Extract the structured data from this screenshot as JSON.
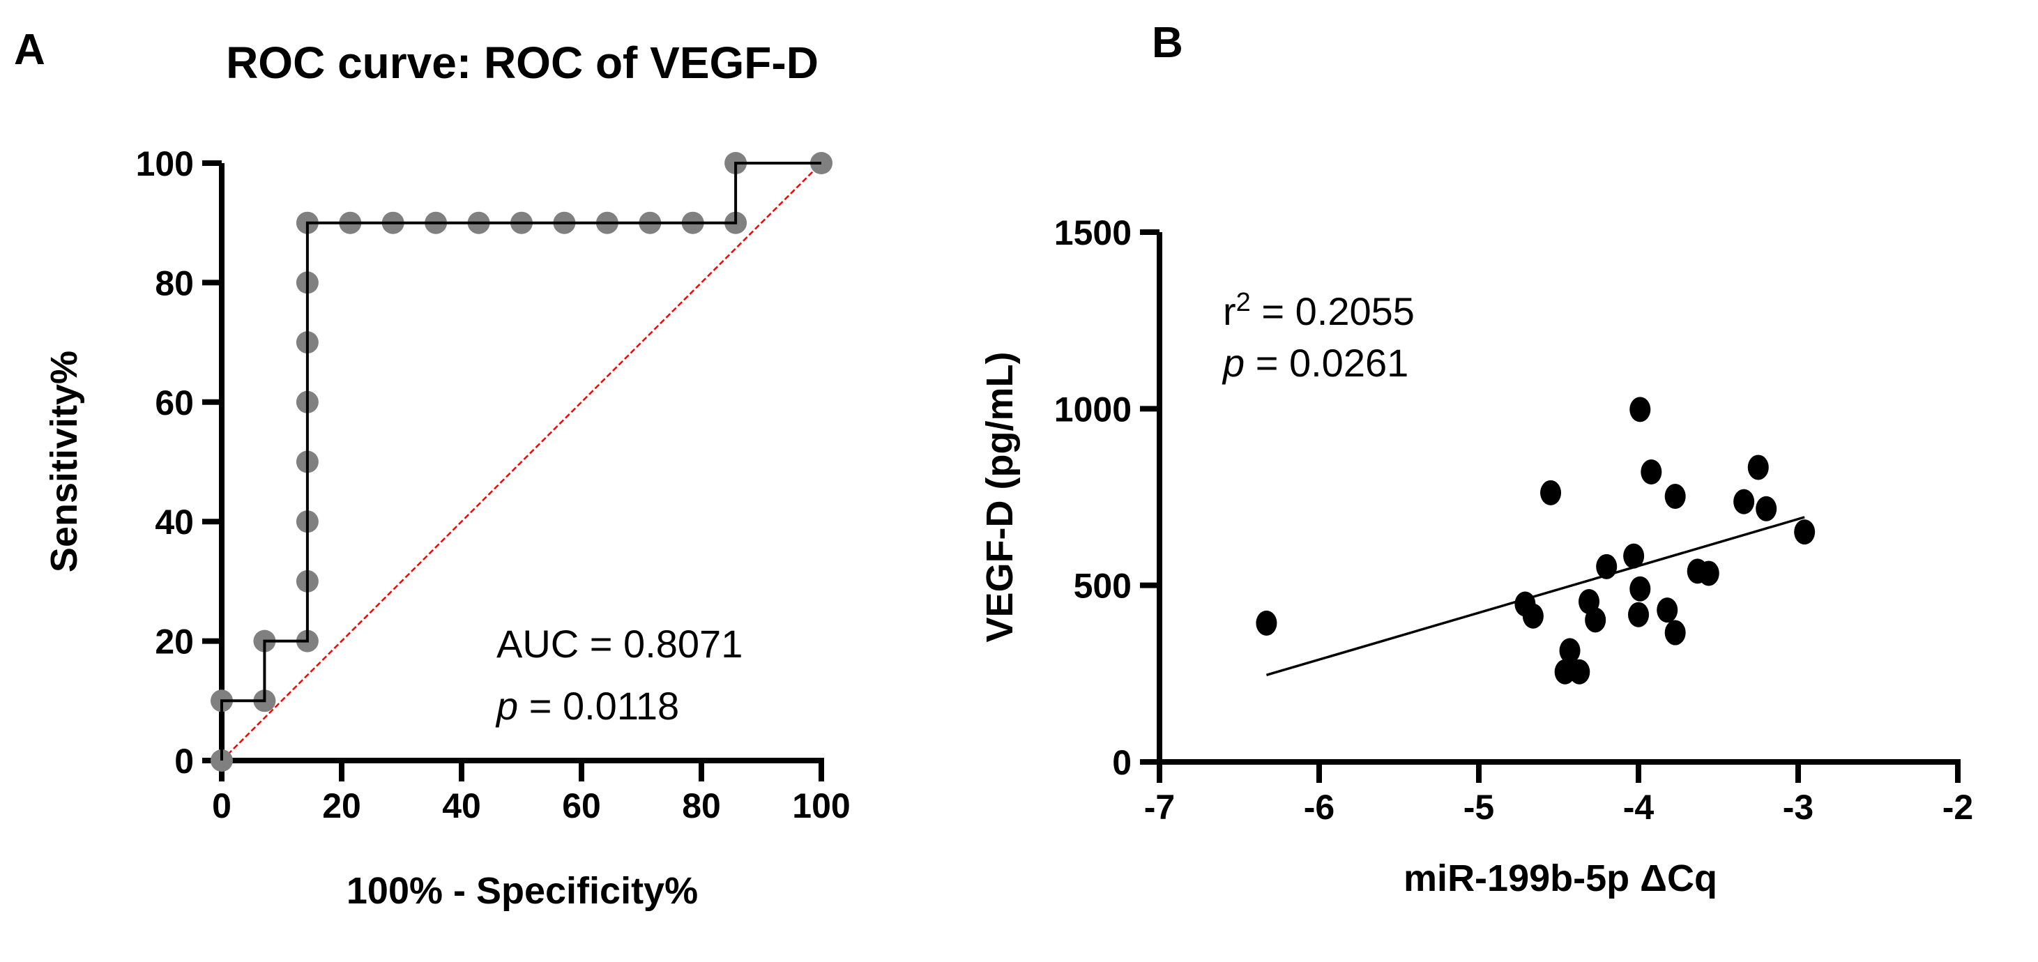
{
  "chart_data": [
    {
      "panel": "A",
      "type": "line",
      "title": "ROC curve: ROC of VEGF-D",
      "xlabel": "100% - Specificity%",
      "ylabel": "Sensitivity%",
      "xlim": [
        0,
        100
      ],
      "ylim": [
        0,
        100
      ],
      "xticks": [
        0,
        20,
        40,
        60,
        80,
        100
      ],
      "yticks": [
        0,
        20,
        40,
        60,
        80,
        100
      ],
      "grid": false,
      "series": [
        {
          "name": "ROC of VEGF-D",
          "color": "#808080",
          "points": [
            [
              0,
              0
            ],
            [
              0,
              10
            ],
            [
              7.14,
              10
            ],
            [
              7.14,
              20
            ],
            [
              14.29,
              20
            ],
            [
              14.29,
              30
            ],
            [
              14.29,
              40
            ],
            [
              14.29,
              50
            ],
            [
              14.29,
              60
            ],
            [
              14.29,
              70
            ],
            [
              14.29,
              80
            ],
            [
              14.29,
              90
            ],
            [
              21.43,
              90
            ],
            [
              28.57,
              90
            ],
            [
              35.71,
              90
            ],
            [
              42.86,
              90
            ],
            [
              50,
              90
            ],
            [
              57.14,
              90
            ],
            [
              64.29,
              90
            ],
            [
              71.43,
              90
            ],
            [
              78.57,
              90
            ],
            [
              85.71,
              90
            ],
            [
              85.71,
              100
            ],
            [
              100,
              100
            ]
          ]
        },
        {
          "name": "reference line",
          "color": "#ff0000",
          "points": [
            [
              0,
              0
            ],
            [
              100,
              100
            ]
          ]
        }
      ],
      "annotations": {
        "auc": "AUC = 0.8071",
        "p_label": "p",
        "p_value": " = 0.0118"
      }
    },
    {
      "panel": "B",
      "type": "scatter",
      "title": "",
      "xlabel": "miR-199b-5p ΔCq",
      "ylabel": "VEGF-D (pg/mL)",
      "xlim": [
        -7,
        -2
      ],
      "ylim": [
        0,
        1500
      ],
      "xticks": [
        -7,
        -6,
        -5,
        -4,
        -3,
        -2
      ],
      "yticks": [
        0,
        500,
        1000,
        1500
      ],
      "grid": false,
      "points": [
        [
          -6.33,
          393
        ],
        [
          -4.55,
          762
        ],
        [
          -3.99,
          998
        ],
        [
          -3.92,
          821
        ],
        [
          -3.77,
          752
        ],
        [
          -3.25,
          834
        ],
        [
          -3.34,
          737
        ],
        [
          -3.2,
          717
        ],
        [
          -2.96,
          651
        ],
        [
          -4.03,
          583
        ],
        [
          -4.2,
          553
        ],
        [
          -3.63,
          540
        ],
        [
          -3.56,
          534
        ],
        [
          -3.99,
          490
        ],
        [
          -4.71,
          447
        ],
        [
          -4.66,
          413
        ],
        [
          -4.31,
          454
        ],
        [
          -4.27,
          402
        ],
        [
          -4.0,
          417
        ],
        [
          -3.82,
          430
        ],
        [
          -3.77,
          366
        ],
        [
          -4.43,
          315
        ],
        [
          -4.46,
          255
        ],
        [
          -4.37,
          255
        ]
      ],
      "fit_line": [
        [
          -6.33,
          246
        ],
        [
          -2.96,
          693
        ]
      ],
      "annotations": {
        "r2_prefix": "r",
        "r2_sup": "2",
        "r2_value": " = 0.2055",
        "p_label": "p",
        "p_value": " = 0.0261"
      }
    }
  ],
  "panel_labels": [
    "A",
    "B"
  ]
}
